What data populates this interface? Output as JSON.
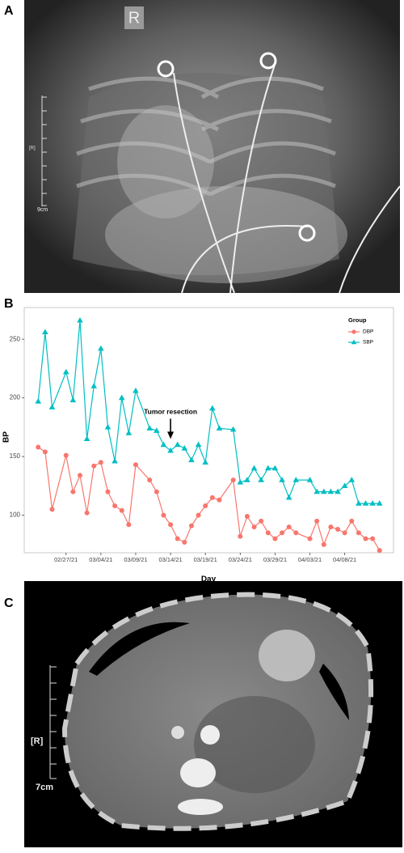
{
  "image_a": {
    "label": "A",
    "side_marker": "R",
    "ruler_label": "[R]",
    "scale": "9cm"
  },
  "image_c": {
    "label": "C",
    "ruler_label": "[R]",
    "scale": "7cm"
  },
  "chart_data": {
    "type": "line",
    "panel_label": "B",
    "x_label": "Day",
    "y_label": "BP",
    "legend_title": "Group",
    "legend": "top right",
    "grid": false,
    "x": [
      "02/23/21",
      "02/24/21",
      "02/25/21",
      "02/27/21",
      "02/28/21",
      "03/01/21",
      "03/02/21",
      "03/03/21",
      "03/04/21",
      "03/05/21",
      "03/06/21",
      "03/07/21",
      "03/08/21",
      "03/09/21",
      "03/11/21",
      "03/12/21",
      "03/13/21",
      "03/14/21",
      "03/15/21",
      "03/16/21",
      "03/17/21",
      "03/18/21",
      "03/19/21",
      "03/20/21",
      "03/21/21",
      "03/23/21",
      "03/24/21",
      "03/25/21",
      "03/26/21",
      "03/27/21",
      "03/28/21",
      "03/29/21",
      "03/30/21",
      "03/31/21",
      "04/01/21",
      "04/03/21",
      "04/04/21",
      "04/05/21",
      "04/06/21",
      "04/07/21",
      "04/08/21",
      "04/09/21",
      "04/10/21",
      "04/11/21",
      "04/12/21",
      "04/13/21"
    ],
    "series": [
      {
        "name": "DBP",
        "color": "#F8766D",
        "marker": "circle",
        "values": [
          158,
          154,
          105,
          151,
          120,
          134,
          102,
          142,
          145,
          120,
          108,
          104,
          92,
          143,
          130,
          120,
          100,
          92,
          80,
          77,
          91,
          100,
          108,
          115,
          113,
          130,
          82,
          99,
          90,
          95,
          85,
          80,
          85,
          90,
          85,
          80,
          95,
          75,
          90,
          88,
          85,
          95,
          85,
          80,
          80,
          70
        ]
      },
      {
        "name": "SBP",
        "color": "#00BFC4",
        "marker": "triangle",
        "values": [
          197,
          256,
          192,
          222,
          198,
          266,
          165,
          210,
          242,
          175,
          146,
          200,
          170,
          206,
          174,
          172,
          160,
          155,
          160,
          157,
          147,
          160,
          145,
          191,
          174,
          173,
          128,
          130,
          140,
          130,
          140,
          140,
          130,
          115,
          130,
          130,
          120,
          120,
          120,
          120,
          125,
          130,
          110,
          110,
          110,
          110
        ]
      }
    ],
    "annotations": [
      {
        "text": "Tumor resection",
        "x": "03/14/21",
        "y": 165
      }
    ],
    "xlim": [
      "02/21/21",
      "04/15/21"
    ],
    "xticks": [
      "02/27/21",
      "03/04/21",
      "03/09/21",
      "03/14/21",
      "03/19/21",
      "03/24/21",
      "03/29/21",
      "04/03/21",
      "04/08/21"
    ],
    "ylim": [
      68,
      277
    ],
    "yticks": [
      100,
      150,
      200,
      250
    ]
  }
}
